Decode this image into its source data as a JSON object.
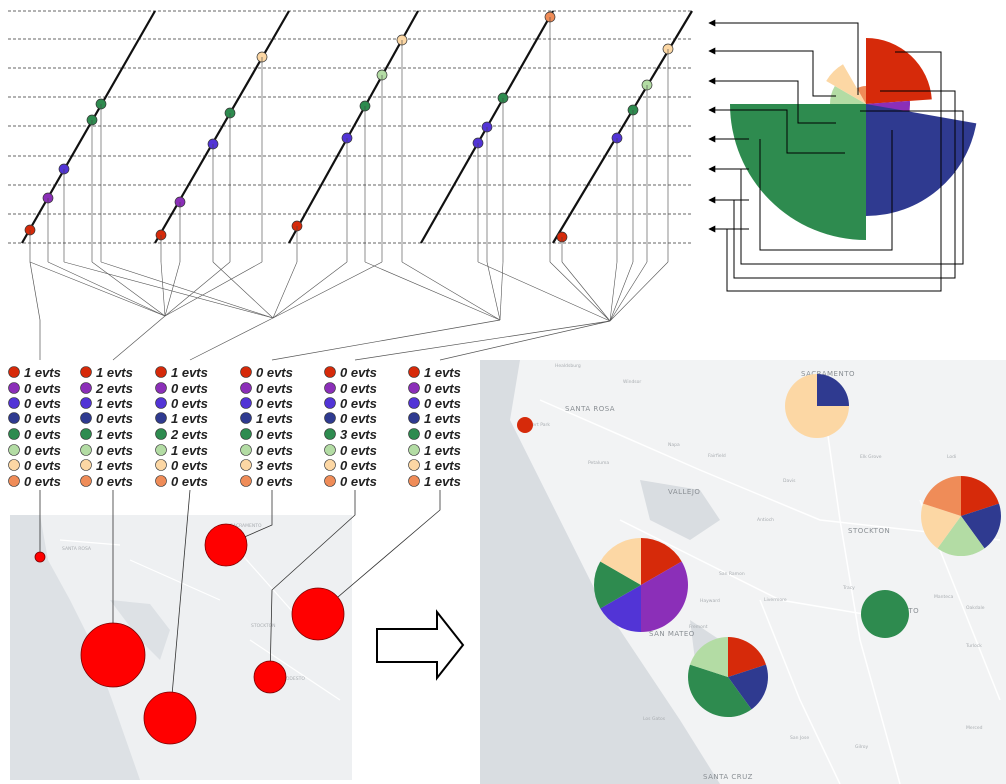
{
  "colors": {
    "c0": "#d62a0a",
    "c1": "#8b2fb8",
    "c2": "#5234d6",
    "c3": "#2f3a90",
    "c4": "#2e8b4f",
    "c5": "#b3dca4",
    "c6": "#fcd7a4",
    "c7": "#ef8c58",
    "marker_red": "#ff0000"
  },
  "arrow_icon": "right-arrow-icon",
  "event_tables": [
    {
      "labels": [
        "1 evts",
        "0 evts",
        "0 evts",
        "0 evts",
        "0 evts",
        "0 evts",
        "0 evts",
        "0 evts"
      ],
      "counts": [
        1,
        0,
        0,
        0,
        0,
        0,
        0,
        0
      ]
    },
    {
      "labels": [
        "1 evts",
        "2 evts",
        "1 evts",
        "0 evts",
        "1 evts",
        "0 evts",
        "1 evts",
        "0 evts"
      ],
      "counts": [
        1,
        2,
        1,
        0,
        1,
        0,
        1,
        0
      ]
    },
    {
      "labels": [
        "1 evts",
        "0 evts",
        "0 evts",
        "1 evts",
        "2 evts",
        "1 evts",
        "0 evts",
        "0 evts"
      ],
      "counts": [
        1,
        0,
        0,
        1,
        2,
        1,
        0,
        0
      ]
    },
    {
      "labels": [
        "0 evts",
        "0 evts",
        "0 evts",
        "1 evts",
        "0 evts",
        "0 evts",
        "3 evts",
        "0 evts"
      ],
      "counts": [
        0,
        0,
        0,
        1,
        0,
        0,
        3,
        0
      ]
    },
    {
      "labels": [
        "0 evts",
        "0 evts",
        "0 evts",
        "0 evts",
        "3 evts",
        "0 evts",
        "0 evts",
        "0 evts"
      ],
      "counts": [
        0,
        0,
        0,
        0,
        3,
        0,
        0,
        0
      ]
    },
    {
      "labels": [
        "1 evts",
        "0 evts",
        "0 evts",
        "1 evts",
        "0 evts",
        "1 evts",
        "1 evts",
        "1 evts"
      ],
      "counts": [
        1,
        0,
        0,
        1,
        0,
        1,
        1,
        1
      ]
    }
  ],
  "map_places": {
    "left": [
      "SANTA ROSA",
      "SACRAMENTO",
      "STOCKTON",
      "MODESTO"
    ],
    "right": [
      "Healdsburg",
      "SANTA ROSA",
      "Windsor",
      "SACRAMENTO",
      "Petaluma",
      "Fairfield",
      "Napa",
      "VALLEJO",
      "Davis",
      "Elk Grove",
      "Lodi",
      "STOCKTON",
      "Antioch",
      "Tracy",
      "San Ramon",
      "Livermore",
      "Manteca",
      "MODESTO",
      "Hayward",
      "Fremont",
      "SAN MATEO",
      "Oakdale",
      "Turlock",
      "Merced",
      "Los Gatos",
      "Gilroy",
      "SANTA CRUZ",
      "San Jose",
      "Rohnert Park"
    ]
  }
}
